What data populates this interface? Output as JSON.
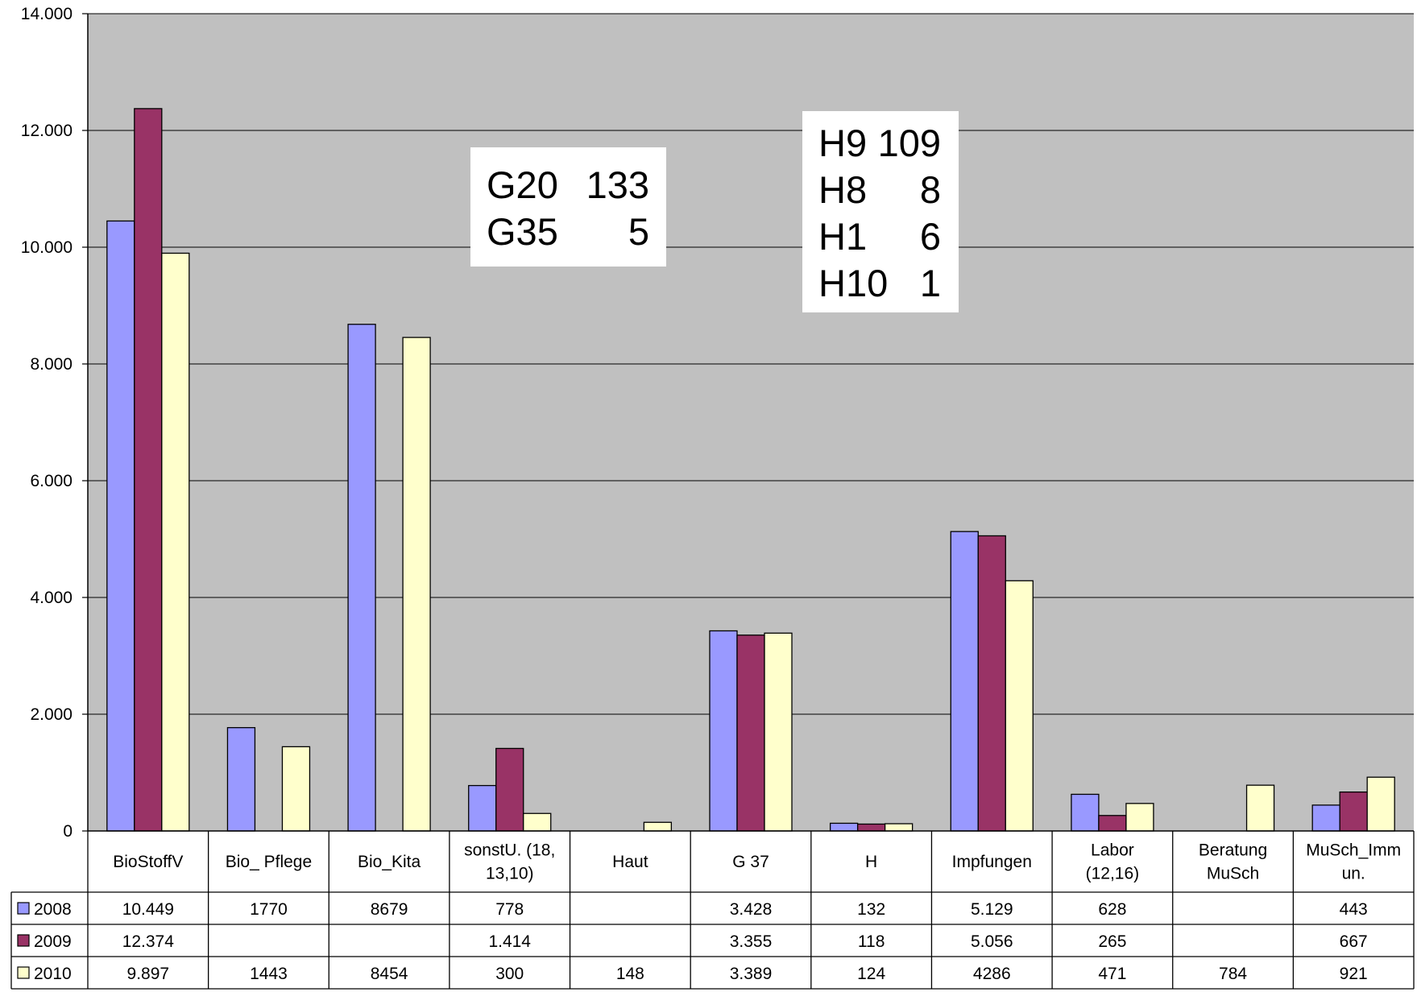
{
  "chart_data": {
    "type": "bar",
    "categories": [
      [
        "BioStoffV"
      ],
      [
        "Bio_ Pflege"
      ],
      [
        "Bio_Kita"
      ],
      [
        "sonstU. (18,",
        "13,10)"
      ],
      [
        "Haut"
      ],
      [
        "G 37"
      ],
      [
        "H"
      ],
      [
        "Impfungen"
      ],
      [
        "Labor",
        "(12,16)"
      ],
      [
        "Beratung",
        "MuSch"
      ],
      [
        "MuSch_Imm",
        "un."
      ]
    ],
    "series": [
      {
        "name": "2008",
        "color": "#9999ff",
        "values": [
          10449,
          1770,
          8679,
          778,
          null,
          3428,
          132,
          5129,
          628,
          null,
          443
        ],
        "labels": [
          "10.449",
          "1770",
          "8679",
          "778",
          "",
          "3.428",
          "132",
          "5.129",
          "628",
          "",
          "443"
        ]
      },
      {
        "name": "2009",
        "color": "#993366",
        "values": [
          12374,
          null,
          null,
          1414,
          null,
          3355,
          118,
          5056,
          265,
          null,
          667
        ],
        "labels": [
          "12.374",
          "",
          "",
          "1.414",
          "",
          "3.355",
          "118",
          "5.056",
          "265",
          "",
          "667"
        ]
      },
      {
        "name": "2010",
        "color": "#ffffcc",
        "values": [
          9897,
          1443,
          8454,
          300,
          148,
          3389,
          124,
          4286,
          471,
          784,
          921
        ],
        "labels": [
          "9.897",
          "1443",
          "8454",
          "300",
          "148",
          "3.389",
          "124",
          "4286",
          "471",
          "784",
          "921"
        ]
      }
    ],
    "ylim": [
      0,
      14000
    ],
    "yticks": [
      0,
      2000,
      4000,
      6000,
      8000,
      10000,
      12000,
      14000
    ],
    "ytick_labels": [
      "0",
      "2.000",
      "4.000",
      "6.000",
      "8.000",
      "10.000",
      "12.000",
      "14.000"
    ],
    "grid": true,
    "plot_background": "#c0c0c0",
    "legend": "data-table-left",
    "annotations": [
      {
        "lines": [
          [
            "G20",
            "133"
          ],
          [
            "G35",
            "5"
          ]
        ]
      },
      {
        "lines": [
          [
            "H9",
            "109"
          ],
          [
            "H8",
            "8"
          ],
          [
            "H1",
            "6"
          ],
          [
            "H10",
            "1"
          ]
        ]
      }
    ]
  }
}
